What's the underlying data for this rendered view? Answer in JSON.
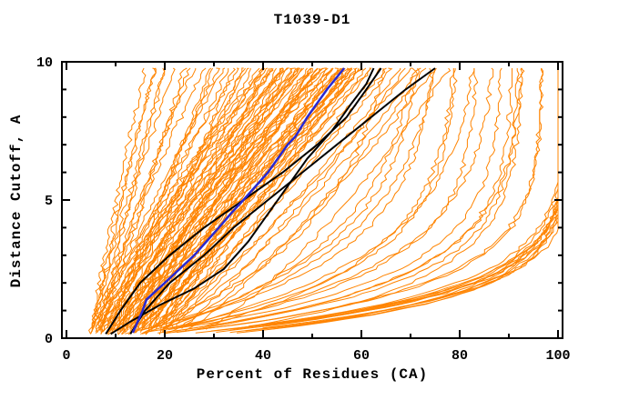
{
  "figure": {
    "background": "#ffffff",
    "kind": "distance-cutoff-accuracy-plot"
  },
  "chart_data": {
    "type": "line",
    "title": "T1039-D1",
    "xlabel": "Percent of Residues (CA)",
    "ylabel": "Distance Cutoff, A",
    "xlim": [
      0,
      100
    ],
    "ylim": [
      0,
      10
    ],
    "x_ticks": [
      0,
      20,
      40,
      60,
      80,
      100
    ],
    "x_minor_ticks": [
      10,
      30,
      50,
      70,
      90
    ],
    "y_ticks": [
      0,
      5,
      10
    ],
    "y_minor_ticks": [
      1,
      2,
      3,
      4,
      6,
      7,
      8,
      9
    ],
    "grid": false,
    "legend": false,
    "axis_color": "#000000",
    "curve_top_cutoff": 9.77,
    "series": {
      "highlight_model": {
        "color": "#2828d0",
        "width": 2.5,
        "points_cutoff_percent": [
          [
            0.2,
            13.5
          ],
          [
            1,
            15.5
          ],
          [
            1.4,
            16.3
          ],
          [
            2,
            20
          ],
          [
            3,
            26
          ],
          [
            4,
            31
          ],
          [
            4.5,
            33.4
          ],
          [
            5,
            36
          ],
          [
            6,
            41
          ],
          [
            7,
            45
          ],
          [
            7.3,
            46.6
          ],
          [
            8,
            49
          ],
          [
            9,
            53
          ],
          [
            9.77,
            56.5
          ]
        ]
      },
      "reference_models": {
        "color": "#000000",
        "width": 2,
        "curves_cutoff_percent": [
          [
            [
              0.15,
              8
            ],
            [
              1,
              11
            ],
            [
              2,
              15
            ],
            [
              3,
              21
            ],
            [
              4,
              28
            ],
            [
              5,
              36
            ],
            [
              6,
              44
            ],
            [
              7,
              51
            ],
            [
              8,
              57
            ],
            [
              9,
              61
            ],
            [
              9.77,
              64
            ]
          ],
          [
            [
              0.15,
              9
            ],
            [
              0.6,
              13
            ],
            [
              1.2,
              19
            ],
            [
              1.8,
              26
            ],
            [
              2.5,
              32
            ],
            [
              3.5,
              37
            ],
            [
              4.5,
              41
            ],
            [
              5.5,
              45
            ],
            [
              6.5,
              49
            ],
            [
              7.5,
              54
            ],
            [
              8.5,
              58
            ],
            [
              9.2,
              61
            ],
            [
              9.77,
              62.5
            ]
          ],
          [
            [
              0.15,
              13
            ],
            [
              1,
              16
            ],
            [
              2,
              21
            ],
            [
              3,
              28
            ],
            [
              4,
              34
            ],
            [
              5,
              41
            ],
            [
              6,
              48
            ],
            [
              7,
              55
            ],
            [
              8,
              62
            ],
            [
              9,
              69
            ],
            [
              9.77,
              75
            ]
          ]
        ]
      },
      "server_models_linear": {
        "color": "#ff8400",
        "width": 1,
        "param_format": "[start_percent_at_0A, end_percent_at_9.77A, shape_k]; percent(c)=p0+(p1-p0)*(c/9.77)^k",
        "curves": [
          [
            4.5,
            16,
            1.05
          ],
          [
            5,
            18,
            1.15
          ],
          [
            5.5,
            20,
            0.95
          ],
          [
            5,
            22,
            1.1
          ],
          [
            4.5,
            25,
            1.0
          ],
          [
            6,
            28,
            1.2
          ],
          [
            7,
            30,
            0.95
          ],
          [
            5.5,
            32,
            1.15
          ],
          [
            8,
            33,
            1.05
          ],
          [
            6.5,
            35,
            1.25
          ],
          [
            9,
            36,
            0.9
          ],
          [
            7.5,
            38,
            1.1
          ],
          [
            10,
            39,
            1.0
          ],
          [
            8.5,
            40,
            1.2
          ],
          [
            11,
            41,
            0.95
          ],
          [
            9.5,
            42,
            1.15
          ],
          [
            12,
            43,
            1.05
          ],
          [
            10.5,
            44,
            1.25
          ],
          [
            13,
            45,
            0.9
          ],
          [
            11.5,
            46,
            1.1
          ],
          [
            14,
            47,
            1.0
          ],
          [
            12.5,
            48,
            1.2
          ],
          [
            15,
            49,
            0.95
          ],
          [
            13.5,
            50,
            1.15
          ],
          [
            16,
            51,
            1.05
          ],
          [
            14.5,
            52,
            1.25
          ],
          [
            17,
            53,
            0.9
          ],
          [
            15.5,
            54,
            1.1
          ],
          [
            18,
            55,
            1.0
          ],
          [
            16.5,
            56,
            1.2
          ],
          [
            19,
            57,
            0.95
          ],
          [
            17.5,
            58,
            1.15
          ],
          [
            20,
            59,
            1.05
          ],
          [
            18.5,
            60,
            1.25
          ],
          [
            5,
            45,
            1.3
          ],
          [
            6,
            48,
            1.28
          ],
          [
            7,
            50,
            1.22
          ],
          [
            8,
            52,
            1.18
          ],
          [
            9,
            54,
            1.12
          ],
          [
            10,
            56,
            1.08
          ],
          [
            11,
            58,
            1.02
          ],
          [
            12,
            60,
            0.98
          ],
          [
            13,
            62,
            0.94
          ],
          [
            5.5,
            40,
            1.3
          ],
          [
            6.5,
            42,
            1.26
          ],
          [
            7.5,
            44,
            1.2
          ],
          [
            8.5,
            46,
            1.14
          ],
          [
            9.5,
            48,
            1.06
          ],
          [
            10.5,
            50,
            1.0
          ],
          [
            11.5,
            52,
            1.3
          ],
          [
            12.5,
            54,
            1.24
          ],
          [
            13.5,
            56,
            1.18
          ],
          [
            14.5,
            58,
            1.12
          ],
          [
            15.5,
            60,
            1.06
          ],
          [
            16.5,
            62,
            1.0
          ],
          [
            4.8,
            20,
            1.05
          ],
          [
            5.2,
            18,
            1.1
          ],
          [
            6,
            24,
            0.92
          ],
          [
            7,
            26,
            1.3
          ],
          [
            8,
            29,
            0.88
          ],
          [
            9,
            31,
            1.22
          ],
          [
            10,
            34,
            0.9
          ],
          [
            11,
            37,
            1.28
          ],
          [
            12,
            40,
            0.86
          ],
          [
            13,
            42,
            1.2
          ],
          [
            14,
            44,
            0.92
          ],
          [
            15,
            47,
            1.26
          ],
          [
            16,
            50,
            0.9
          ],
          [
            17,
            52,
            1.18
          ],
          [
            18,
            54,
            0.94
          ],
          [
            19,
            56,
            1.24
          ],
          [
            20,
            58,
            0.88
          ],
          [
            6,
            36,
            1.0
          ],
          [
            7,
            41,
            1.3
          ],
          [
            8,
            44,
            0.9
          ],
          [
            9,
            47,
            1.2
          ],
          [
            10,
            51,
            0.95
          ],
          [
            11,
            53,
            1.25
          ],
          [
            12,
            57,
            0.85
          ],
          [
            13,
            59,
            1.15
          ],
          [
            14,
            61,
            0.95
          ],
          [
            12,
            64,
            0.9
          ],
          [
            14,
            66,
            0.85
          ],
          [
            16,
            68,
            0.8
          ],
          [
            13,
            70,
            0.78
          ],
          [
            15,
            72,
            0.75
          ],
          [
            17,
            75,
            0.72
          ],
          [
            18,
            65,
            0.95
          ],
          [
            20,
            69,
            0.82
          ],
          [
            21,
            73,
            0.76
          ],
          [
            23,
            78,
            0.7
          ]
        ]
      },
      "server_models_saturating": {
        "color": "#ff8400",
        "width": 1,
        "param_format": "[start_percent, amplitude, tau]; percent(c)=min(100, p0+A*(1-exp(-c/tau)))",
        "curves": [
          [
            15,
            90,
            1.44
          ],
          [
            12,
            85,
            1.6
          ],
          [
            10,
            70,
            2.2
          ],
          [
            14,
            88,
            1.3
          ],
          [
            11,
            80,
            1.8
          ],
          [
            16,
            86,
            1.5
          ],
          [
            9,
            75,
            2.0
          ],
          [
            13,
            90,
            1.4
          ],
          [
            18,
            84,
            1.25
          ],
          [
            10,
            82,
            1.7
          ],
          [
            12,
            76,
            2.4
          ],
          [
            17,
            85,
            1.35
          ],
          [
            8,
            68,
            2.6
          ],
          [
            20,
            82,
            1.2
          ],
          [
            11,
            86,
            1.55
          ],
          [
            15,
            78,
            2.0
          ],
          [
            9,
            80,
            1.9
          ],
          [
            22,
            80,
            1.3
          ],
          [
            13,
            72,
            2.8
          ],
          [
            19,
            83,
            1.45
          ],
          [
            10,
            64,
            3.0
          ],
          [
            16,
            88,
            1.5
          ],
          [
            12,
            66,
            3.2
          ],
          [
            24,
            78,
            1.25
          ],
          [
            14,
            60,
            3.4
          ],
          [
            21,
            84,
            1.35
          ],
          [
            11,
            58,
            3.8
          ],
          [
            18,
            62,
            2.5
          ],
          [
            26,
            76,
            1.4
          ],
          [
            23,
            70,
            1.8
          ]
        ]
      }
    }
  }
}
